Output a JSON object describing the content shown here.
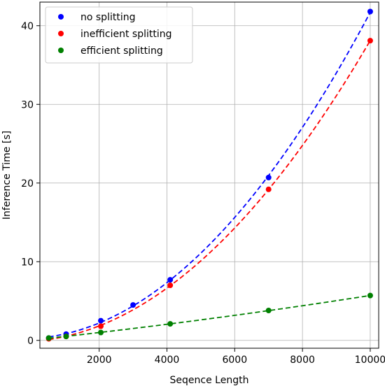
{
  "chart_data": {
    "type": "scatter",
    "title": "",
    "xlabel": "Seqence Length",
    "ylabel": "Inference Time [s]",
    "xlim": [
      250,
      10250
    ],
    "ylim": [
      -1,
      43
    ],
    "xticks": [
      2000,
      4000,
      6000,
      8000,
      10000
    ],
    "yticks": [
      0,
      10,
      20,
      30,
      40
    ],
    "xtick_labels": [
      "2000",
      "4000",
      "6000",
      "8000",
      "10000"
    ],
    "ytick_labels": [
      "0",
      "10",
      "20",
      "30",
      "40"
    ],
    "grid": true,
    "legend_position": "top-left",
    "series": [
      {
        "name": "no splitting",
        "color": "#0000ff",
        "x": [
          512,
          1024,
          2048,
          3000,
          4096,
          7000,
          10000
        ],
        "y": [
          0.3,
          0.8,
          2.5,
          4.5,
          7.7,
          20.7,
          41.8
        ]
      },
      {
        "name": "inefficient splitting",
        "color": "#ff0000",
        "x": [
          512,
          1024,
          2048,
          4096,
          7000,
          10000
        ],
        "y": [
          0.2,
          0.5,
          1.8,
          7.0,
          19.2,
          38.1
        ]
      },
      {
        "name": "efficient splitting",
        "color": "#008000",
        "x": [
          512,
          1024,
          2048,
          4096,
          7000,
          10000
        ],
        "y": [
          0.3,
          0.5,
          1.0,
          2.1,
          3.8,
          5.7
        ]
      }
    ]
  }
}
